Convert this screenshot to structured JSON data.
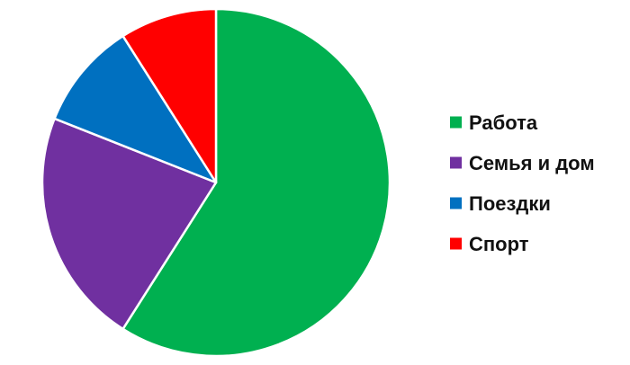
{
  "chart_data": {
    "type": "pie",
    "title": "",
    "legend_position": "right",
    "start_angle_deg": 0,
    "direction": "clockwise",
    "slices": [
      {
        "label": "Работа",
        "value": 59,
        "color": "#00b050"
      },
      {
        "label": "Семья и дом",
        "value": 22,
        "color": "#7030a0"
      },
      {
        "label": "Поездки",
        "value": 10,
        "color": "#0070c0"
      },
      {
        "label": "Спорт",
        "value": 9,
        "color": "#ff0000"
      }
    ]
  }
}
